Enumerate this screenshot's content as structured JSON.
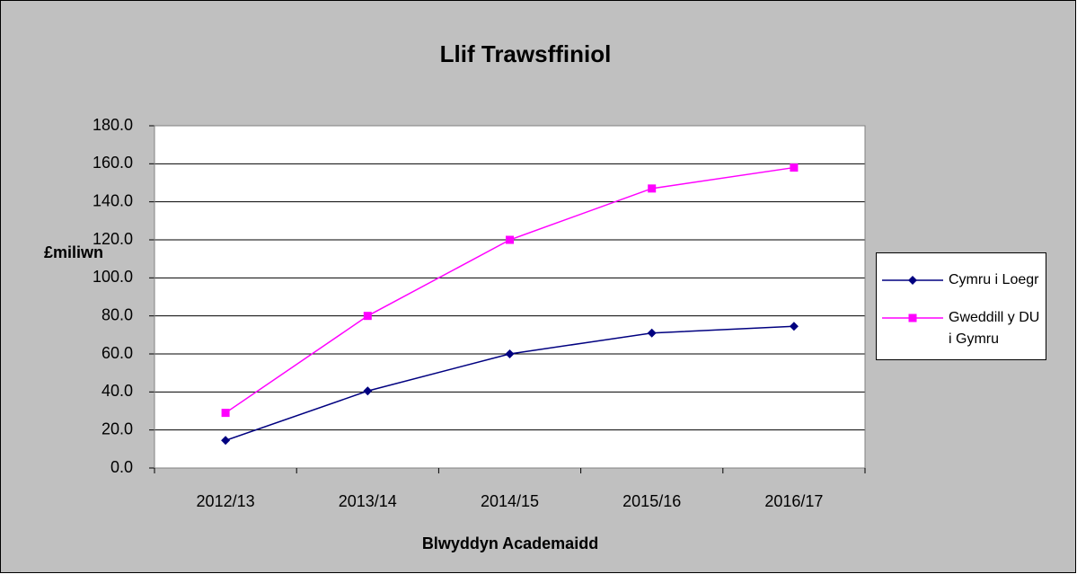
{
  "chart_data": {
    "type": "line",
    "title": "Llif Trawsffiniol",
    "ylabel": "£miliwn",
    "xlabel": "Blwyddyn Academaidd",
    "categories": [
      "2012/13",
      "2013/14",
      "2014/15",
      "2015/16",
      "2016/17"
    ],
    "series": [
      {
        "name": "Cymru i Loegr",
        "color": "#000080",
        "marker": "diamond",
        "values": [
          14.5,
          40.5,
          60,
          71,
          74.5
        ]
      },
      {
        "name": "Gweddill y DU i Gymru",
        "color": "#ff00ff",
        "marker": "square",
        "values": [
          29,
          80,
          120,
          147,
          158
        ]
      }
    ],
    "ylim": [
      0,
      180
    ],
    "yticks": [
      {
        "value": 0,
        "label": "0.0"
      },
      {
        "value": 20,
        "label": "20.0"
      },
      {
        "value": 40,
        "label": "40.0"
      },
      {
        "value": 60,
        "label": "60.0"
      },
      {
        "value": 80,
        "label": "80.0"
      },
      {
        "value": 100,
        "label": "100.0"
      },
      {
        "value": 120,
        "label": "120.0"
      },
      {
        "value": 140,
        "label": "140.0"
      },
      {
        "value": 160,
        "label": "160.0"
      },
      {
        "value": 180,
        "label": "180.0"
      }
    ],
    "grid": true,
    "legend": "right"
  }
}
